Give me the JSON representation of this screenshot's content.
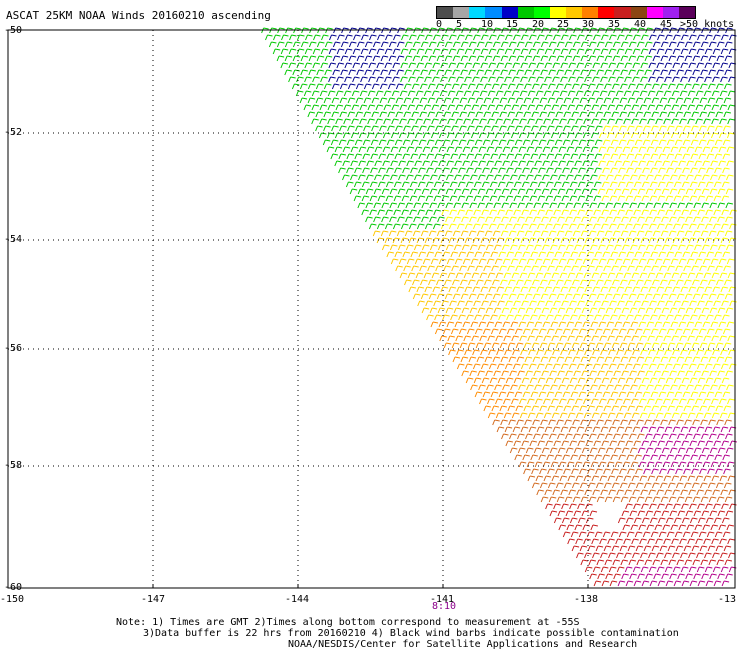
{
  "title": "ASCAT 25KM NOAA Winds 20160210 ascending",
  "colorbar": {
    "colors": [
      "#4d4d4d",
      "#a6a6a6",
      "#00d9ff",
      "#008cff",
      "#0000c8",
      "#00c800",
      "#00ff00",
      "#ffff00",
      "#ffc800",
      "#ff8000",
      "#ff0000",
      "#c81e1e",
      "#8b4513",
      "#ff00ff",
      "#a020f0",
      "#5a005a"
    ],
    "tick_labels": [
      "0",
      "5",
      "10",
      "15",
      "20",
      "25",
      "30",
      "35",
      "40",
      "45",
      ">50 knots"
    ]
  },
  "axes": {
    "lat_labels": [
      "-50",
      "-52",
      "-54",
      "-56",
      "-58",
      "-60"
    ],
    "lon_labels": [
      "-150",
      "-147",
      "-144",
      "-141",
      "-138",
      "-13"
    ]
  },
  "time_label": "8:10",
  "notes": {
    "line1": "Note: 1) Times are GMT 2)Times along bottom correspond to measurement at -55S",
    "line2": "3)Data buffer is 22 hrs from 20160210 4) Black wind barbs indicate possible contamination",
    "line3": "NOAA/NESDIS/Center for Satellite Applications and Research"
  },
  "legend_colors": {
    "black": "#000000",
    "navy": "#00008b",
    "dark_green": "#006400",
    "green": "#00c800",
    "yellow": "#ffff00",
    "gold": "#ffc800",
    "orange": "#ff8c00",
    "dark_orange": "#d2691e",
    "red": "#c81e1e",
    "magenta": "#b4008c"
  }
}
